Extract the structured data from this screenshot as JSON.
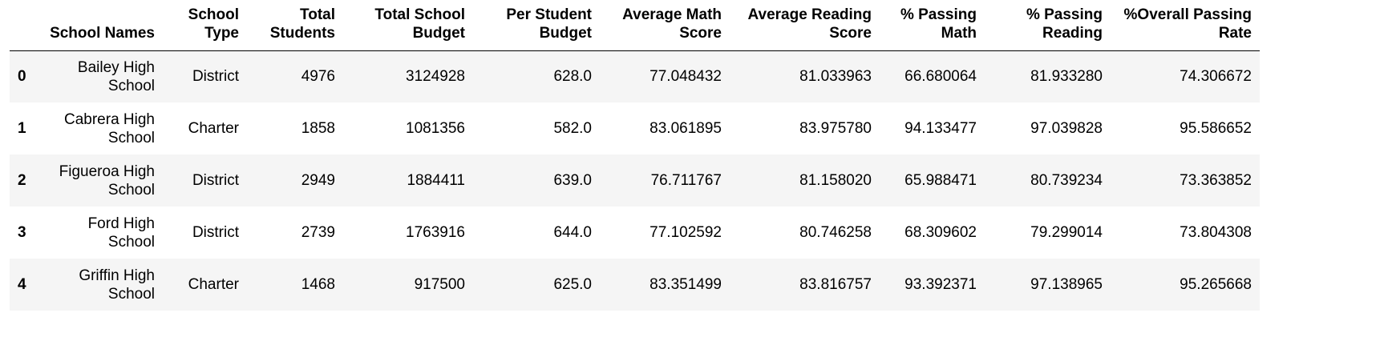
{
  "columns": [
    {
      "key": "index",
      "label": ""
    },
    {
      "key": "name",
      "label": "School Names"
    },
    {
      "key": "type",
      "label": "School Type"
    },
    {
      "key": "students",
      "label": "Total Students"
    },
    {
      "key": "budget",
      "label": "Total School Budget"
    },
    {
      "key": "per_student",
      "label": "Per Student Budget"
    },
    {
      "key": "math",
      "label": "Average Math Score"
    },
    {
      "key": "reading",
      "label": "Average Reading Score"
    },
    {
      "key": "pass_math",
      "label": "% Passing Math"
    },
    {
      "key": "pass_reading",
      "label": "% Passing Reading"
    },
    {
      "key": "overall",
      "label": "%Overall Passing Rate"
    }
  ],
  "rows": [
    {
      "index": "0",
      "name": "Bailey High School",
      "type": "District",
      "students": "4976",
      "budget": "3124928",
      "per_student": "628.0",
      "math": "77.048432",
      "reading": "81.033963",
      "pass_math": "66.680064",
      "pass_reading": "81.933280",
      "overall": "74.306672"
    },
    {
      "index": "1",
      "name": "Cabrera High School",
      "type": "Charter",
      "students": "1858",
      "budget": "1081356",
      "per_student": "582.0",
      "math": "83.061895",
      "reading": "83.975780",
      "pass_math": "94.133477",
      "pass_reading": "97.039828",
      "overall": "95.586652"
    },
    {
      "index": "2",
      "name": "Figueroa High School",
      "type": "District",
      "students": "2949",
      "budget": "1884411",
      "per_student": "639.0",
      "math": "76.711767",
      "reading": "81.158020",
      "pass_math": "65.988471",
      "pass_reading": "80.739234",
      "overall": "73.363852"
    },
    {
      "index": "3",
      "name": "Ford High School",
      "type": "District",
      "students": "2739",
      "budget": "1763916",
      "per_student": "644.0",
      "math": "77.102592",
      "reading": "80.746258",
      "pass_math": "68.309602",
      "pass_reading": "79.299014",
      "overall": "73.804308"
    },
    {
      "index": "4",
      "name": "Griffin High School",
      "type": "Charter",
      "students": "1468",
      "budget": "917500",
      "per_student": "625.0",
      "math": "83.351499",
      "reading": "83.816757",
      "pass_math": "93.392371",
      "pass_reading": "97.138965",
      "overall": "95.265668"
    }
  ]
}
